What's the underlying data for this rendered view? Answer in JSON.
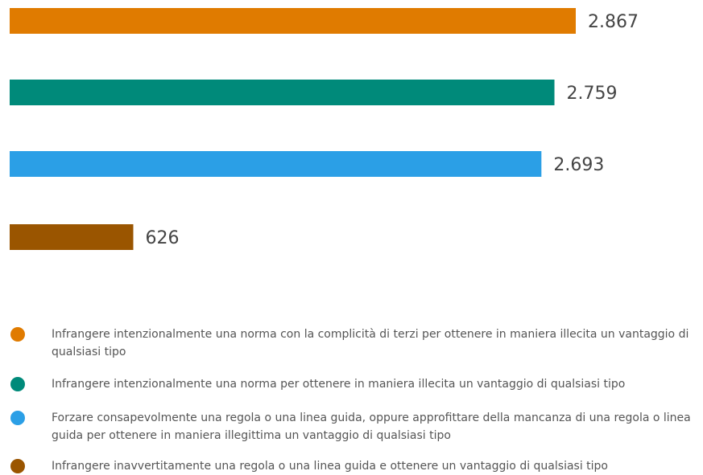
{
  "chart_data": {
    "type": "bar",
    "orientation": "horizontal",
    "categories": [
      "Infrangere intenzionalmente una norma con la complicità di terzi per ottenere in maniera illecita un vantaggio di qualsiasi tipo",
      "Infrangere intenzionalmente una norma per ottenere in maniera illecita un vantaggio di qualsiasi tipo",
      "Forzare consapevolmente una regola o una linea guida, oppure approfittare della mancanza di una regola o linea guida per ottenere in maniera illegittima un vantaggio di qualsiasi tipo",
      "Infrangere inavvertitamente una regola o una linea guida e ottenere un vantaggio di qualsiasi tipo"
    ],
    "values": [
      2867,
      2759,
      2693,
      626
    ],
    "value_labels": [
      "2.867",
      "2.759",
      "2.693",
      "626"
    ],
    "colors": [
      "#e07b00",
      "#008a7a",
      "#2b9fe6",
      "#9a5500"
    ],
    "legend": "bottom"
  }
}
